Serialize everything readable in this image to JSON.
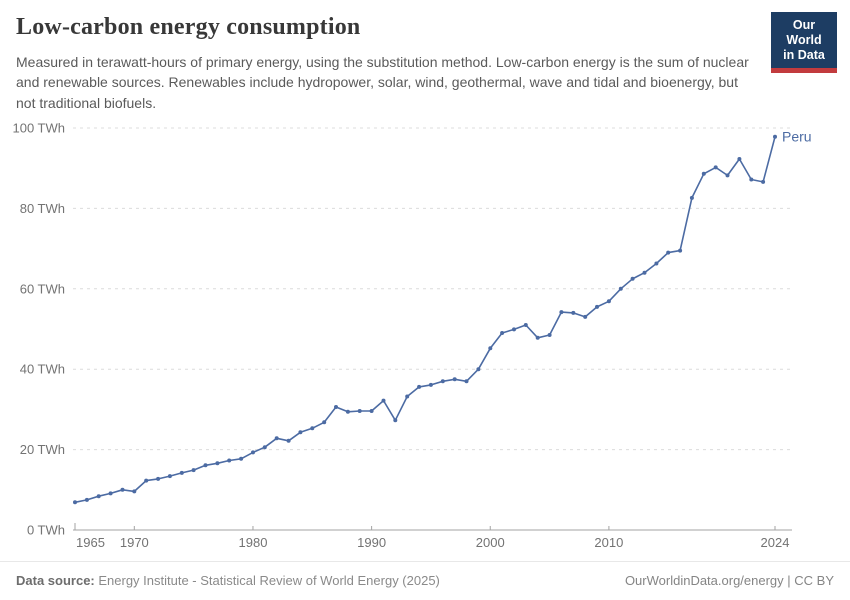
{
  "header": {
    "title": "Low-carbon energy consumption",
    "subtitle": "Measured in terawatt-hours of primary energy, using the substitution method. Low-carbon energy is the sum of nuclear and renewable sources. Renewables include hydropower, solar, wind, geothermal, wave and tidal and bioenergy, but not traditional biofuels.",
    "logo": {
      "line1": "Our World",
      "line2": "in Data",
      "bg_color": "#1d3d63",
      "accent_color": "#c23b3e"
    }
  },
  "chart_data": {
    "type": "line",
    "title": "Low-carbon energy consumption",
    "unit": "TWh",
    "xlabel": "",
    "ylabel": "TWh",
    "xlim": [
      1965,
      2024
    ],
    "ylim": [
      0,
      100
    ],
    "grid": "horizontal-dashed",
    "legend_position": "end-of-line-label",
    "x": [
      1965,
      1966,
      1967,
      1968,
      1969,
      1970,
      1971,
      1972,
      1973,
      1974,
      1975,
      1976,
      1977,
      1978,
      1979,
      1980,
      1981,
      1982,
      1983,
      1984,
      1985,
      1986,
      1987,
      1988,
      1989,
      1990,
      1991,
      1992,
      1993,
      1994,
      1995,
      1996,
      1997,
      1998,
      1999,
      2000,
      2001,
      2002,
      2003,
      2004,
      2005,
      2006,
      2007,
      2008,
      2009,
      2010,
      2011,
      2012,
      2013,
      2014,
      2015,
      2016,
      2017,
      2018,
      2019,
      2020,
      2021,
      2022,
      2023,
      2024
    ],
    "series": [
      {
        "name": "Peru",
        "color": "#4c6ba3",
        "values": [
          6.9,
          7.5,
          8.4,
          9.1,
          10.0,
          9.6,
          12.3,
          12.7,
          13.4,
          14.2,
          14.9,
          16.1,
          16.6,
          17.3,
          17.7,
          19.3,
          20.6,
          22.8,
          22.2,
          24.3,
          25.3,
          26.8,
          30.6,
          29.4,
          29.6,
          29.6,
          32.2,
          27.3,
          33.2,
          35.6,
          36.1,
          37.0,
          37.5,
          37.0,
          40.0,
          45.2,
          49.0,
          49.9,
          51.0,
          47.8,
          48.5,
          54.2,
          54.0,
          53.0,
          55.5,
          56.9,
          60.0,
          62.5,
          64.0,
          66.3,
          69.0,
          69.5,
          82.6,
          88.6,
          90.2,
          88.2,
          92.3,
          87.2,
          86.6,
          97.8
        ]
      }
    ],
    "y_ticks": [
      {
        "value": 0,
        "label": "0 TWh"
      },
      {
        "value": 20,
        "label": "20 TWh"
      },
      {
        "value": 40,
        "label": "40 TWh"
      },
      {
        "value": 60,
        "label": "60 TWh"
      },
      {
        "value": 80,
        "label": "80 TWh"
      },
      {
        "value": 100,
        "label": "100 TWh"
      }
    ],
    "x_ticks": [
      {
        "value": 1965,
        "label": "1965"
      },
      {
        "value": 1970,
        "label": "1970"
      },
      {
        "value": 1980,
        "label": "1980"
      },
      {
        "value": 1990,
        "label": "1990"
      },
      {
        "value": 2000,
        "label": "2000"
      },
      {
        "value": 2010,
        "label": "2010"
      },
      {
        "value": 2024,
        "label": "2024"
      }
    ],
    "colors": {
      "grid": "#dcdcdc",
      "axis": "#a3a3a3",
      "tick_text": "#737373"
    }
  },
  "footer": {
    "source_label": "Data source:",
    "source_text": " Energy Institute - Statistical Review of World Energy (2025)",
    "credit": "OurWorldinData.org/energy | CC BY"
  }
}
